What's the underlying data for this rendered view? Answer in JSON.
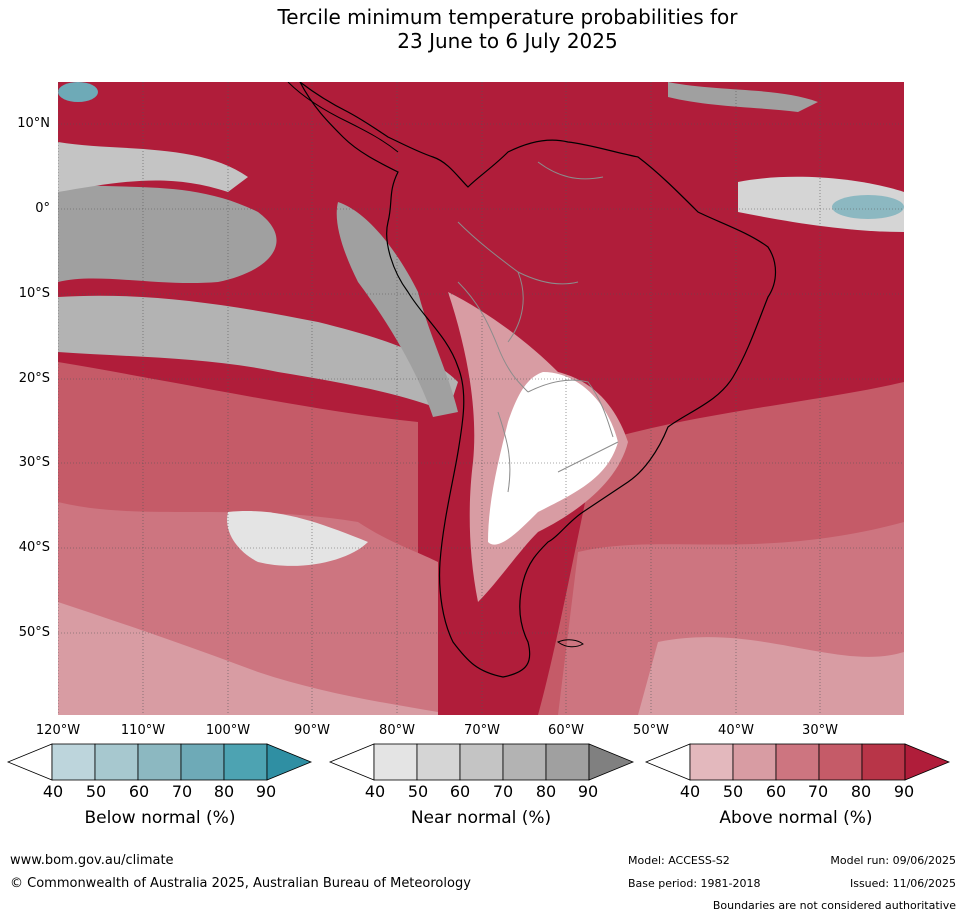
{
  "title_line1": "Tercile minimum temperature probabilities for",
  "title_line2": "23 June to 6 July 2025",
  "map": {
    "lat_ticks": [
      "10°N",
      "0°",
      "10°S",
      "20°S",
      "30°S",
      "40°S",
      "50°S"
    ],
    "lon_ticks": [
      "120°W",
      "110°W",
      "100°W",
      "90°W",
      "80°W",
      "70°W",
      "60°W",
      "50°W",
      "40°W",
      "30°W"
    ],
    "colors": {
      "land_border": "#000000",
      "country_border": "#8c8c8c",
      "grid": "#555555"
    }
  },
  "colorbars": [
    {
      "title": "Below normal (%)",
      "ticks": [
        "40",
        "50",
        "60",
        "70",
        "80",
        "90"
      ],
      "colors": [
        "#ffffff",
        "#bdd5dc",
        "#a7c8cf",
        "#8cb8c1",
        "#6eaab7",
        "#4da3b2",
        "#2f8fa3"
      ]
    },
    {
      "title": "Near normal (%)",
      "ticks": [
        "40",
        "50",
        "60",
        "70",
        "80",
        "90"
      ],
      "colors": [
        "#ffffff",
        "#e4e4e4",
        "#d5d5d5",
        "#c4c4c4",
        "#b3b3b3",
        "#a0a0a0",
        "#808080"
      ]
    },
    {
      "title": "Above normal (%)",
      "ticks": [
        "40",
        "50",
        "60",
        "70",
        "80",
        "90"
      ],
      "colors": [
        "#ffffff",
        "#e3b8bd",
        "#d89ca3",
        "#cd7580",
        "#c55b68",
        "#b83548",
        "#b01d3a"
      ]
    }
  ],
  "footer": {
    "website": "www.bom.gov.au/climate",
    "copyright": "© Commonwealth of Australia 2025, Australian Bureau of Meteorology",
    "model": "Model: ACCESS-S2",
    "base_period": "Base period: 1981-2018",
    "model_run": "Model run: 09/06/2025",
    "issued": "Issued: 11/06/2025",
    "disclaimer": "Boundaries are not considered authoritative"
  }
}
